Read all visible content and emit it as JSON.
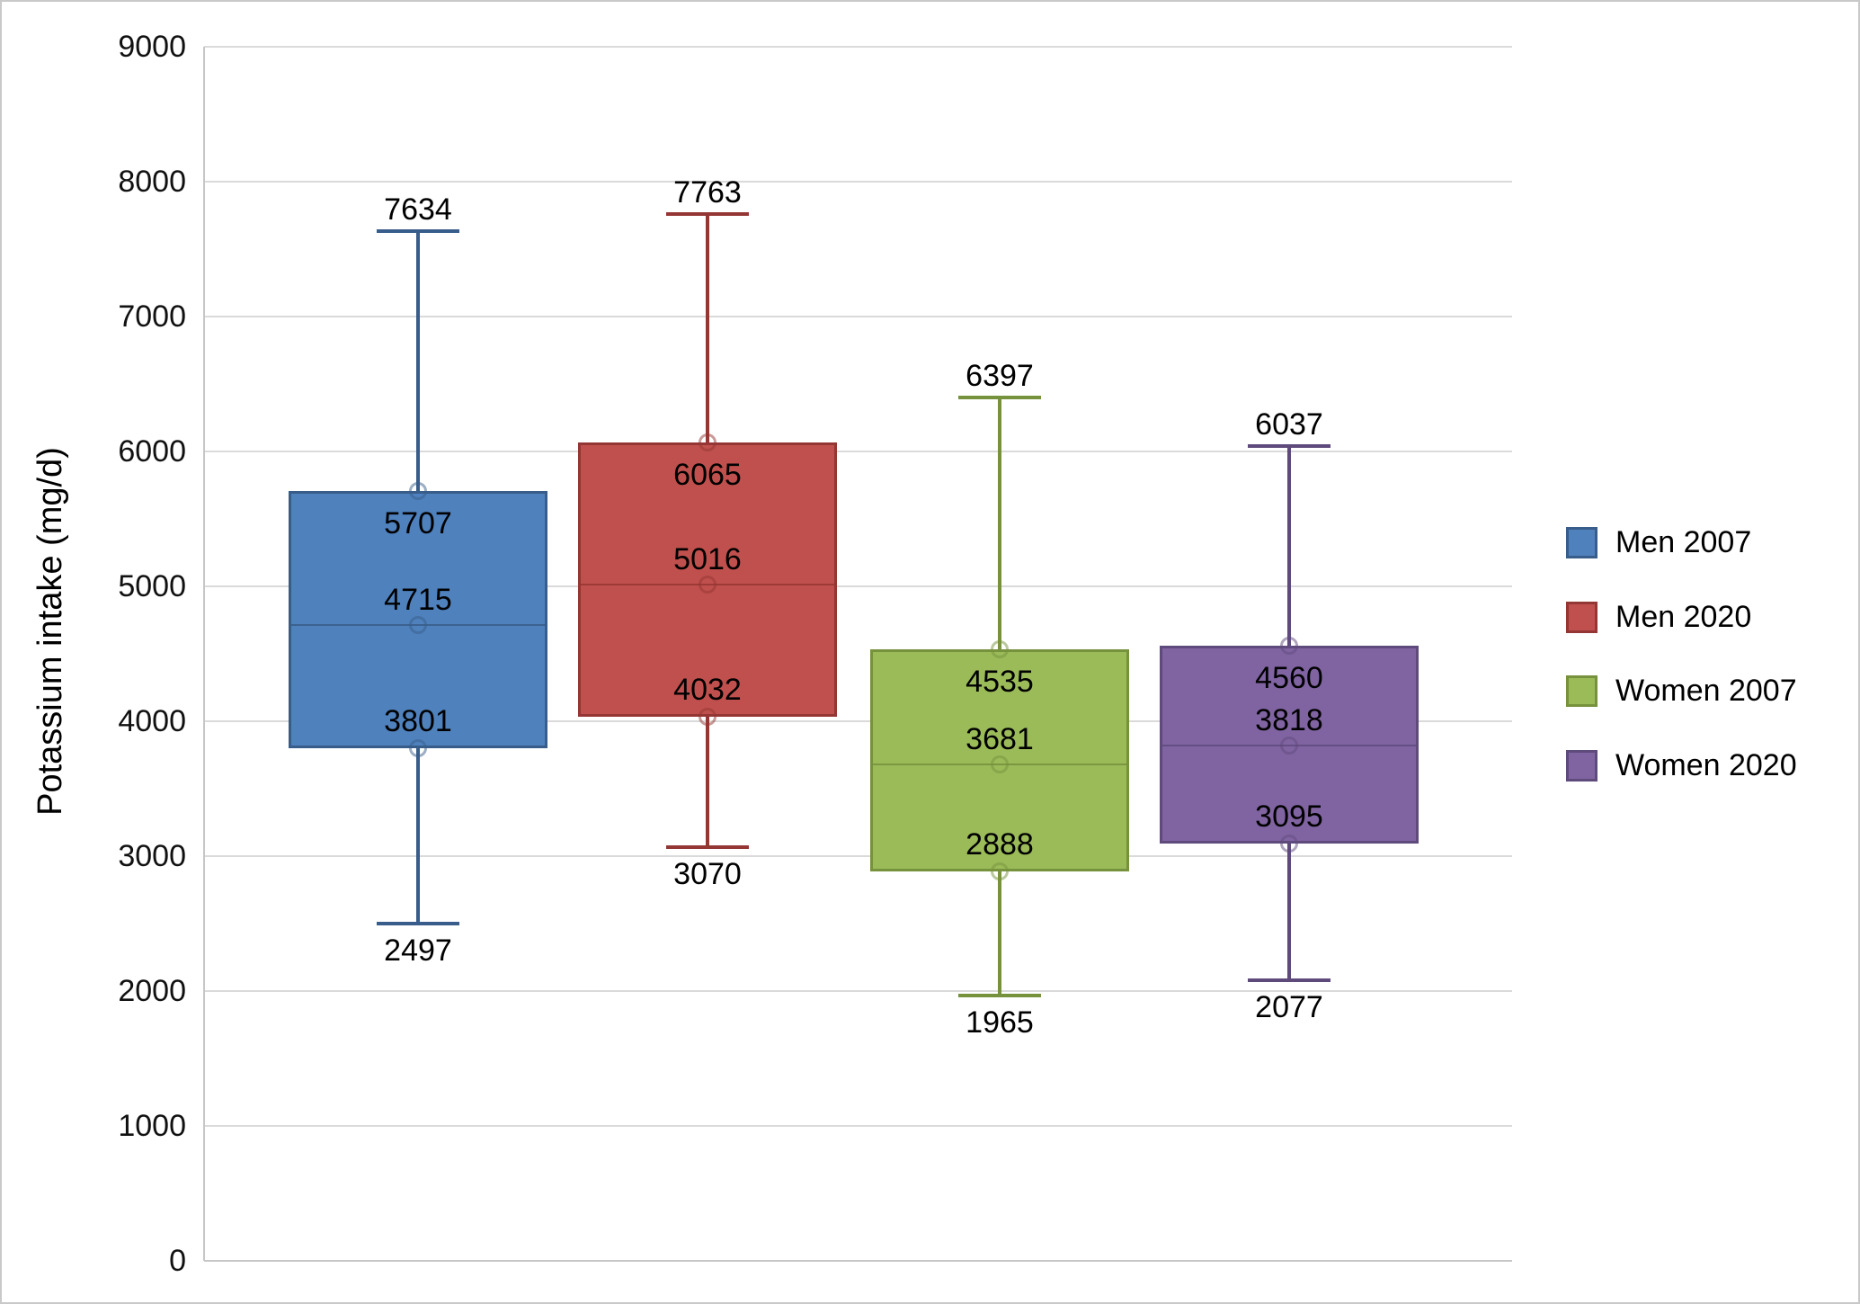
{
  "chart_data": {
    "type": "boxplot",
    "title": "",
    "ylabel": "Potassium intake (mg/d)",
    "xlabel": "",
    "ylim": [
      0,
      9000
    ],
    "ytick_step": 1000,
    "ytick_labels": [
      "0",
      "1000",
      "2000",
      "3000",
      "4000",
      "5000",
      "6000",
      "7000",
      "8000",
      "9000"
    ],
    "grid": "horizontal",
    "legend_position": "right",
    "colors": {
      "background": "#FFFFFF",
      "gridline": "#DADADA",
      "axis": "#C6C6C6",
      "frame_border": "#C9C9C9"
    },
    "series": [
      {
        "name": "Men 2007",
        "fill": "#4F81BD",
        "border": "#385D8A",
        "min": 2497,
        "q1": 3801,
        "median": 4715,
        "q3": 5707,
        "max": 7634
      },
      {
        "name": "Men 2020",
        "fill": "#C0504D",
        "border": "#943634",
        "min": 3070,
        "q1": 4032,
        "median": 5016,
        "q3": 6065,
        "max": 7763
      },
      {
        "name": "Women 2007",
        "fill": "#9BBB59",
        "border": "#76923C",
        "min": 1965,
        "q1": 2888,
        "median": 3681,
        "q3": 4535,
        "max": 6397
      },
      {
        "name": "Women 2020",
        "fill": "#8064A2",
        "border": "#5F4A7C",
        "min": 2077,
        "q1": 3095,
        "median": 3818,
        "q3": 4560,
        "max": 6037
      }
    ]
  }
}
